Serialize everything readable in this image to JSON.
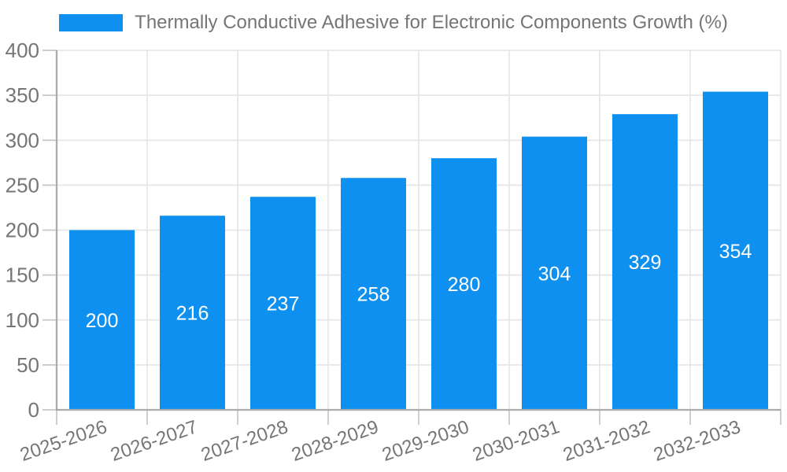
{
  "legend": {
    "series_label": "Thermally Conductive Adhesive for Electronic Components Growth (%)"
  },
  "chart_data": {
    "type": "bar",
    "title": "Thermally Conductive Adhesive for Electronic Components Growth (%)",
    "categories": [
      "2025-2026",
      "2026-2027",
      "2027-2028",
      "2028-2029",
      "2029-2030",
      "2030-2031",
      "2031-2032",
      "2032-2033"
    ],
    "values": [
      200,
      216,
      237,
      258,
      280,
      304,
      329,
      354
    ],
    "xlabel": "",
    "ylabel": "",
    "ylim": [
      0,
      400
    ],
    "ytick_step": 50,
    "y_ticks": [
      0,
      50,
      100,
      150,
      200,
      250,
      300,
      350,
      400
    ],
    "grid": true,
    "legend_position": "top-center",
    "value_labels": "inside-center",
    "colors": {
      "bar": "#0E90F0",
      "value_label": "#FFFFFF",
      "text": "#757575",
      "grid": "#E6E6E6",
      "tick": "#C6C6C6",
      "axis_line": "#ABABAB",
      "background": "#FFFFFF"
    }
  }
}
